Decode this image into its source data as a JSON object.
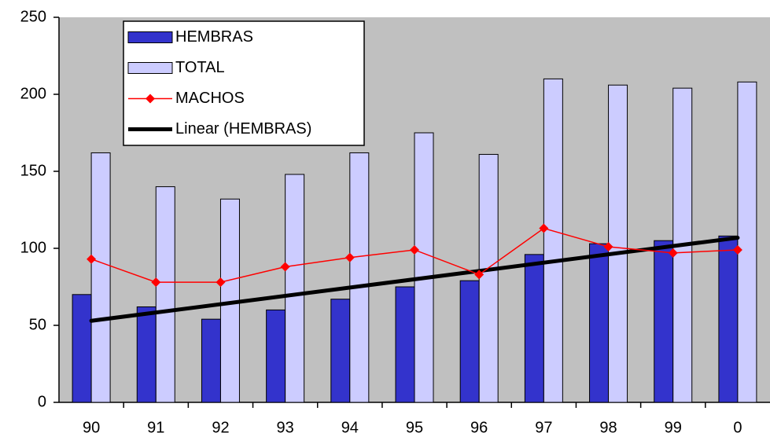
{
  "chart_data": {
    "type": "bar",
    "categories": [
      "90",
      "91",
      "92",
      "93",
      "94",
      "95",
      "96",
      "97",
      "98",
      "99",
      "0"
    ],
    "series": [
      {
        "name": "HEMBRAS",
        "type": "bar",
        "color": "#3333cc",
        "values": [
          70,
          62,
          54,
          60,
          67,
          75,
          79,
          96,
          103,
          105,
          108
        ]
      },
      {
        "name": "TOTAL",
        "type": "bar",
        "color": "#ccccff",
        "values": [
          162,
          140,
          132,
          148,
          162,
          175,
          161,
          210,
          206,
          204,
          208
        ]
      },
      {
        "name": "MACHOS",
        "type": "line",
        "color": "#ff0000",
        "values": [
          93,
          78,
          78,
          88,
          94,
          99,
          83,
          113,
          101,
          97,
          99
        ]
      },
      {
        "name": "Linear (HEMBRAS)",
        "type": "trend",
        "of": 0,
        "color": "#000000"
      }
    ],
    "ylim": [
      0,
      250
    ],
    "yticks": [
      0,
      50,
      100,
      150,
      200,
      250
    ],
    "legend": "top-left"
  }
}
